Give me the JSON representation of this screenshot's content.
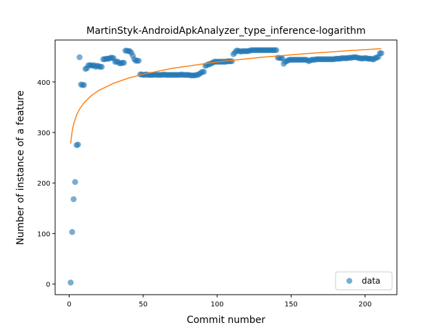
{
  "chart_data": {
    "type": "scatter",
    "title": "MartinStyk-AndroidApkAnalyzer_type_inference-logarithm",
    "x_label": "Commit number",
    "y_label": "Number of instance of a feature",
    "xlim": [
      -9.5,
      221.5
    ],
    "ylim": [
      -21,
      483
    ],
    "xticks": [
      0,
      50,
      100,
      150,
      200
    ],
    "yticks": [
      0,
      100,
      200,
      300,
      400
    ],
    "legend": "lower right",
    "series": [
      {
        "name": "data",
        "color": "#1f77b4",
        "mode": "markers",
        "x": [
          1,
          2,
          3,
          4,
          5,
          6,
          7,
          8,
          9,
          10,
          11,
          12,
          13,
          14,
          15,
          16,
          17,
          18,
          19,
          20,
          21,
          22,
          23,
          24,
          25,
          26,
          27,
          28,
          29,
          30,
          31,
          32,
          33,
          34,
          35,
          36,
          37,
          38,
          39,
          40,
          41,
          42,
          43,
          44,
          45,
          46,
          47,
          48,
          49,
          50,
          51,
          52,
          53,
          54,
          55,
          56,
          57,
          58,
          59,
          60,
          61,
          62,
          63,
          64,
          65,
          66,
          67,
          68,
          69,
          70,
          71,
          72,
          73,
          74,
          75,
          76,
          77,
          78,
          79,
          80,
          81,
          82,
          83,
          84,
          85,
          86,
          87,
          88,
          89,
          90,
          91,
          92,
          93,
          94,
          95,
          96,
          97,
          98,
          99,
          100,
          101,
          102,
          103,
          104,
          105,
          106,
          107,
          108,
          109,
          110,
          111,
          112,
          113,
          114,
          115,
          116,
          117,
          118,
          119,
          120,
          121,
          122,
          123,
          124,
          125,
          126,
          127,
          128,
          129,
          130,
          131,
          132,
          133,
          134,
          135,
          136,
          137,
          138,
          139,
          140,
          141,
          142,
          143,
          144,
          145,
          146,
          147,
          148,
          149,
          150,
          151,
          152,
          153,
          154,
          155,
          156,
          157,
          158,
          159,
          160,
          161,
          162,
          163,
          164,
          165,
          166,
          167,
          168,
          169,
          170,
          171,
          172,
          173,
          174,
          175,
          176,
          177,
          178,
          179,
          180,
          181,
          182,
          183,
          184,
          185,
          186,
          187,
          188,
          189,
          190,
          191,
          192,
          193,
          194,
          195,
          196,
          197,
          198,
          199,
          200,
          201,
          202,
          203,
          204,
          205,
          206,
          207,
          208,
          209,
          210,
          211
        ],
        "values": [
          3,
          103,
          168,
          202,
          275,
          276,
          449,
          395,
          394,
          394,
          426,
          427,
          433,
          433,
          433,
          432,
          433,
          430,
          432,
          431,
          430,
          430,
          445,
          445,
          446,
          446,
          446,
          448,
          448,
          447,
          440,
          440,
          440,
          437,
          437,
          438,
          438,
          462,
          462,
          461,
          461,
          458,
          452,
          445,
          442,
          442,
          442,
          415,
          415,
          414,
          414,
          415,
          414,
          414,
          414,
          414,
          414,
          415,
          414,
          414,
          414,
          414,
          414,
          415,
          414,
          414,
          414,
          414,
          414,
          414,
          414,
          414,
          414,
          414,
          414,
          415,
          414,
          414,
          414,
          414,
          414,
          413,
          413,
          413,
          413,
          414,
          414,
          416,
          418,
          420,
          420,
          432,
          433,
          435,
          435,
          437,
          438,
          440,
          440,
          440,
          440,
          440,
          440,
          440,
          440,
          440,
          441,
          441,
          441,
          441,
          455,
          458,
          462,
          462,
          461,
          460,
          461,
          461,
          461,
          461,
          461,
          462,
          463,
          463,
          463,
          463,
          463,
          463,
          463,
          463,
          463,
          463,
          463,
          463,
          463,
          463,
          463,
          463,
          463,
          463,
          448,
          448,
          447,
          447,
          436,
          440,
          441,
          443,
          444,
          444,
          444,
          444,
          444,
          444,
          444,
          444,
          444,
          444,
          444,
          444,
          443,
          441,
          443,
          444,
          444,
          444,
          445,
          445,
          445,
          445,
          445,
          445,
          445,
          445,
          445,
          445,
          445,
          445,
          445,
          446,
          446,
          446,
          446,
          447,
          447,
          447,
          447,
          447,
          448,
          448,
          448,
          449,
          449,
          449,
          448,
          447,
          447,
          446,
          447,
          447,
          447,
          446,
          446,
          446,
          445,
          445,
          448,
          448,
          450,
          457,
          457
        ]
      },
      {
        "color": "#ff7f0e",
        "mode": "line",
        "x": [
          1,
          2,
          3,
          5,
          7,
          10,
          15,
          20,
          30,
          40,
          50,
          70,
          100,
          130,
          160,
          190,
          211
        ],
        "values": [
          278,
          302.3,
          316.6,
          334.5,
          346.3,
          358.8,
          373.1,
          383.2,
          397.4,
          407.5,
          415.3,
          427.1,
          439.6,
          448.9,
          456.1,
          462.2,
          465.9
        ]
      }
    ]
  }
}
